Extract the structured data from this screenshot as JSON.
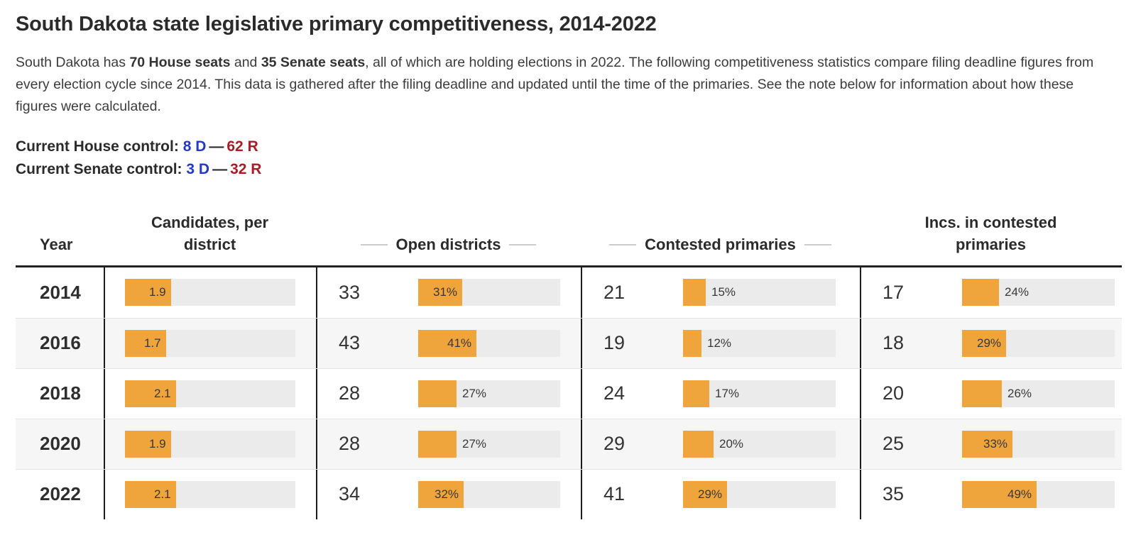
{
  "page": {
    "title": "South Dakota state legislative primary competitiveness, 2014-2022",
    "intro": {
      "part1": "South Dakota has ",
      "bold1": "70 House seats",
      "part2": " and ",
      "bold2": "35 Senate seats",
      "part3": ", all of which are holding elections in 2022. The following competitiveness statistics compare filing deadline figures from every election cycle since 2014. This data is gathered after the filing deadline and updated until the time of the primaries. See the note below for information about how these figures were calculated."
    },
    "control": {
      "house_label": "Current House control:",
      "house_dem": "8 D",
      "house_rep": "62 R",
      "senate_label": "Current Senate control:",
      "senate_dem": "3 D",
      "senate_rep": "32 R",
      "separator": "—"
    }
  },
  "colors": {
    "bar_fill": "#F0A43C",
    "bar_track": "#EBEBEB",
    "dem_blue": "#2639C4",
    "rep_red": "#A81E28"
  },
  "chart_data": {
    "type": "table",
    "title": "South Dakota state legislative primary competitiveness, 2014-2022",
    "legend_position": "none",
    "grid": false,
    "headers": {
      "year": "Year",
      "candidates": "Candidates, per district",
      "open": "Open districts",
      "contested": "Contested primaries",
      "incs": "Incs. in contested primaries"
    },
    "bar_scales": {
      "candidates_max": 7,
      "percent_max": 100
    },
    "rows": [
      {
        "year": "2014",
        "candidates_per_district": 1.9,
        "candidates_label": "1.9",
        "open_districts": 33,
        "open_pct": 31,
        "open_pct_label": "31%",
        "contested_primaries": 21,
        "contested_pct": 15,
        "contested_pct_label": "15%",
        "incs_in_contested": 17,
        "incs_pct": 24,
        "incs_pct_label": "24%"
      },
      {
        "year": "2016",
        "candidates_per_district": 1.7,
        "candidates_label": "1.7",
        "open_districts": 43,
        "open_pct": 41,
        "open_pct_label": "41%",
        "contested_primaries": 19,
        "contested_pct": 12,
        "contested_pct_label": "12%",
        "incs_in_contested": 18,
        "incs_pct": 29,
        "incs_pct_label": "29%"
      },
      {
        "year": "2018",
        "candidates_per_district": 2.1,
        "candidates_label": "2.1",
        "open_districts": 28,
        "open_pct": 27,
        "open_pct_label": "27%",
        "contested_primaries": 24,
        "contested_pct": 17,
        "contested_pct_label": "17%",
        "incs_in_contested": 20,
        "incs_pct": 26,
        "incs_pct_label": "26%"
      },
      {
        "year": "2020",
        "candidates_per_district": 1.9,
        "candidates_label": "1.9",
        "open_districts": 28,
        "open_pct": 27,
        "open_pct_label": "27%",
        "contested_primaries": 29,
        "contested_pct": 20,
        "contested_pct_label": "20%",
        "incs_in_contested": 25,
        "incs_pct": 33,
        "incs_pct_label": "33%"
      },
      {
        "year": "2022",
        "candidates_per_district": 2.1,
        "candidates_label": "2.1",
        "open_districts": 34,
        "open_pct": 32,
        "open_pct_label": "32%",
        "contested_primaries": 41,
        "contested_pct": 29,
        "contested_pct_label": "29%",
        "incs_in_contested": 35,
        "incs_pct": 49,
        "incs_pct_label": "49%"
      }
    ]
  }
}
